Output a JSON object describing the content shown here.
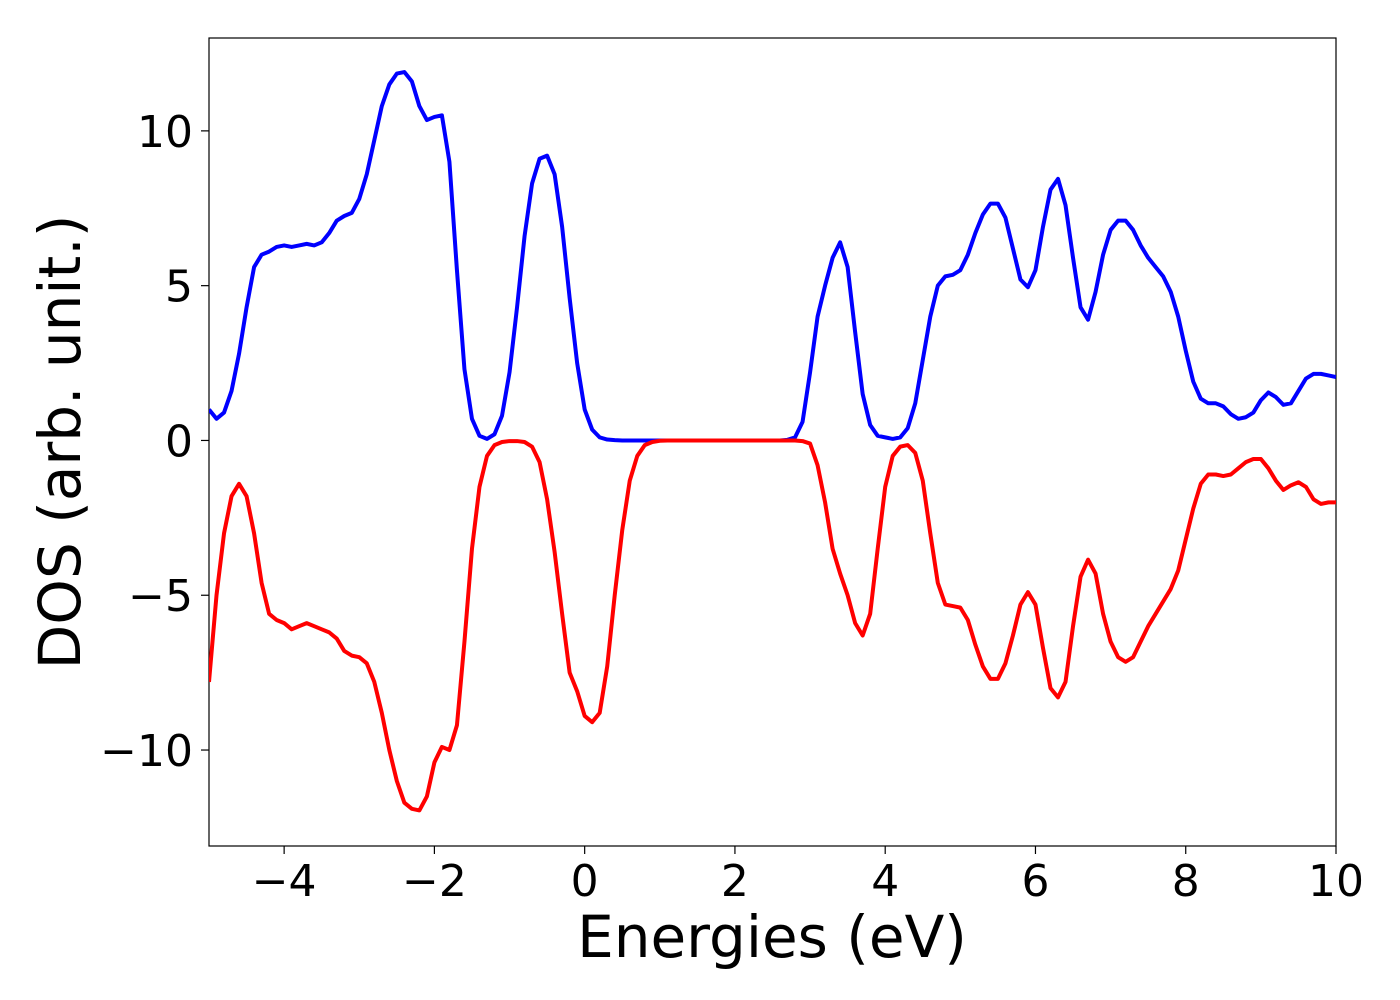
{
  "chart_data": {
    "type": "line",
    "xlabel": "Energies (eV)",
    "ylabel": "DOS (arb. unit.)",
    "x": [
      -5.0,
      -4.9,
      -4.8,
      -4.7,
      -4.6,
      -4.5,
      -4.4,
      -4.3,
      -4.2,
      -4.1,
      -4.0,
      -3.9,
      -3.8,
      -3.7,
      -3.6,
      -3.5,
      -3.4,
      -3.3,
      -3.2,
      -3.1,
      -3.0,
      -2.9,
      -2.8,
      -2.7,
      -2.6,
      -2.5,
      -2.4,
      -2.3,
      -2.2,
      -2.1,
      -2.0,
      -1.9,
      -1.8,
      -1.7,
      -1.6,
      -1.5,
      -1.4,
      -1.3,
      -1.2,
      -1.1,
      -1.0,
      -0.9,
      -0.8,
      -0.7,
      -0.6,
      -0.5,
      -0.4,
      -0.3,
      -0.2,
      -0.1,
      0.0,
      0.1,
      0.2,
      0.3,
      0.4,
      0.5,
      0.6,
      0.7,
      0.8,
      0.9,
      1.0,
      1.1,
      1.2,
      1.3,
      1.4,
      1.5,
      1.6,
      1.7,
      1.8,
      1.9,
      2.0,
      2.1,
      2.2,
      2.3,
      2.4,
      2.5,
      2.6,
      2.7,
      2.8,
      2.9,
      3.0,
      3.1,
      3.2,
      3.3,
      3.4,
      3.5,
      3.6,
      3.7,
      3.8,
      3.9,
      4.0,
      4.1,
      4.2,
      4.3,
      4.4,
      4.5,
      4.6,
      4.7,
      4.8,
      4.9,
      5.0,
      5.1,
      5.2,
      5.3,
      5.4,
      5.5,
      5.6,
      5.7,
      5.8,
      5.9,
      6.0,
      6.1,
      6.2,
      6.3,
      6.4,
      6.5,
      6.6,
      6.7,
      6.8,
      6.9,
      7.0,
      7.1,
      7.2,
      7.3,
      7.4,
      7.5,
      7.6,
      7.7,
      7.8,
      7.9,
      8.0,
      8.1,
      8.2,
      8.3,
      8.4,
      8.5,
      8.6,
      8.7,
      8.8,
      8.9,
      9.0,
      9.1,
      9.2,
      9.3,
      9.4,
      9.5,
      9.6,
      9.7,
      9.8,
      9.9,
      10.0
    ],
    "series": [
      {
        "color": "#0000ff",
        "values": [
          1.0,
          0.7,
          0.9,
          1.6,
          2.8,
          4.3,
          5.6,
          6.0,
          6.1,
          6.25,
          6.3,
          6.25,
          6.3,
          6.35,
          6.3,
          6.4,
          6.7,
          7.1,
          7.25,
          7.35,
          7.8,
          8.6,
          9.7,
          10.8,
          11.5,
          11.85,
          11.9,
          11.6,
          10.8,
          10.35,
          10.45,
          10.5,
          9.0,
          5.5,
          2.3,
          0.7,
          0.15,
          0.05,
          0.2,
          0.8,
          2.2,
          4.3,
          6.6,
          8.3,
          9.1,
          9.2,
          8.6,
          6.9,
          4.6,
          2.5,
          1.0,
          0.35,
          0.1,
          0.03,
          0.01,
          0,
          0,
          0,
          0,
          0,
          0,
          0,
          0,
          0,
          0,
          0,
          0,
          0,
          0,
          0,
          0,
          0,
          0,
          0,
          0,
          0,
          0,
          0.02,
          0.1,
          0.6,
          2.2,
          4.0,
          5.0,
          5.9,
          6.4,
          5.6,
          3.5,
          1.5,
          0.5,
          0.15,
          0.1,
          0.05,
          0.1,
          0.4,
          1.2,
          2.6,
          4.0,
          5.0,
          5.3,
          5.35,
          5.5,
          6.0,
          6.7,
          7.3,
          7.65,
          7.65,
          7.2,
          6.2,
          5.2,
          4.95,
          5.5,
          6.9,
          8.1,
          8.45,
          7.6,
          5.9,
          4.3,
          3.9,
          4.8,
          6.0,
          6.8,
          7.1,
          7.1,
          6.8,
          6.3,
          5.9,
          5.6,
          5.3,
          4.8,
          4.0,
          2.9,
          1.9,
          1.35,
          1.2,
          1.2,
          1.1,
          0.85,
          0.7,
          0.75,
          0.9,
          1.3,
          1.55,
          1.4,
          1.15,
          1.2,
          1.6,
          2.0,
          2.15,
          2.15,
          2.1,
          2.05
        ]
      },
      {
        "color": "#ff0000",
        "values": [
          -7.8,
          -5.0,
          -3.0,
          -1.8,
          -1.4,
          -1.8,
          -3.0,
          -4.6,
          -5.6,
          -5.8,
          -5.9,
          -6.1,
          -6.0,
          -5.9,
          -6.0,
          -6.1,
          -6.2,
          -6.4,
          -6.8,
          -6.95,
          -7.0,
          -7.2,
          -7.8,
          -8.8,
          -10.0,
          -11.0,
          -11.7,
          -11.9,
          -11.95,
          -11.5,
          -10.4,
          -9.9,
          -10.0,
          -9.2,
          -6.5,
          -3.5,
          -1.5,
          -0.5,
          -0.15,
          -0.05,
          -0.02,
          -0.02,
          -0.05,
          -0.2,
          -0.7,
          -1.9,
          -3.6,
          -5.6,
          -7.5,
          -8.1,
          -8.9,
          -9.1,
          -8.8,
          -7.3,
          -5.0,
          -2.9,
          -1.3,
          -0.5,
          -0.15,
          -0.05,
          -0.01,
          0,
          0,
          0,
          0,
          0,
          0,
          0,
          0,
          0,
          0,
          0,
          0,
          0,
          0,
          0,
          0,
          0,
          0,
          -0.02,
          -0.1,
          -0.8,
          -2.0,
          -3.5,
          -4.3,
          -5.0,
          -5.9,
          -6.3,
          -5.6,
          -3.5,
          -1.5,
          -0.5,
          -0.2,
          -0.15,
          -0.4,
          -1.3,
          -3.0,
          -4.6,
          -5.3,
          -5.35,
          -5.4,
          -5.8,
          -6.6,
          -7.3,
          -7.7,
          -7.7,
          -7.2,
          -6.3,
          -5.3,
          -4.9,
          -5.3,
          -6.7,
          -8.0,
          -8.3,
          -7.8,
          -6.0,
          -4.4,
          -3.85,
          -4.3,
          -5.6,
          -6.5,
          -7.0,
          -7.15,
          -7.0,
          -6.5,
          -6.0,
          -5.6,
          -5.2,
          -4.8,
          -4.2,
          -3.2,
          -2.2,
          -1.4,
          -1.1,
          -1.1,
          -1.15,
          -1.1,
          -0.9,
          -0.7,
          -0.6,
          -0.6,
          -0.9,
          -1.3,
          -1.6,
          -1.45,
          -1.35,
          -1.5,
          -1.9,
          -2.05,
          -2.0,
          -2.0
        ]
      }
    ],
    "xlim": [
      -5,
      10
    ],
    "xticks": [
      {
        "value": -4,
        "label": "−4"
      },
      {
        "value": -2,
        "label": "−2"
      },
      0,
      2,
      4,
      6,
      8,
      10
    ],
    "ylim": [
      -13.1,
      13.0
    ],
    "yticks": [
      {
        "value": -10,
        "label": "−10"
      },
      {
        "value": -5,
        "label": "−5"
      },
      0,
      5,
      10
    ],
    "grid": false
  }
}
